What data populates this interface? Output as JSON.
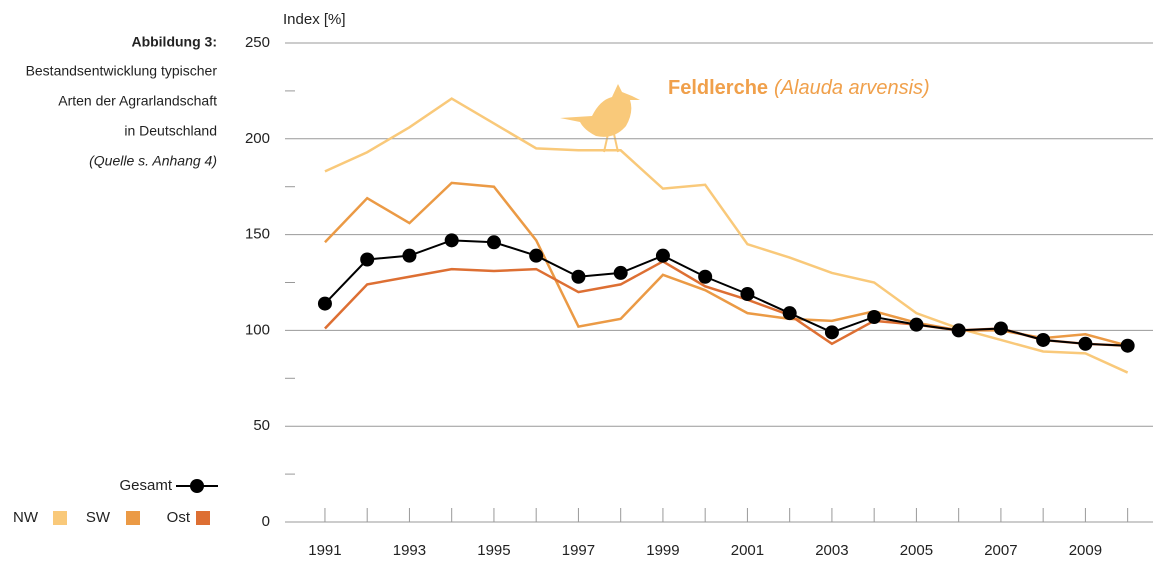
{
  "chart_data": {
    "type": "line",
    "caption_label": "Abbildung 3:",
    "caption_lines": [
      "Bestandsentwicklung typischer",
      "Arten der Agrarlandschaft",
      "in Deutschland"
    ],
    "caption_source": "(Quelle s. Anhang 4)",
    "title": "Feldlerche",
    "title_italic": "(Alauda arvensis)",
    "title_color": "#f0a04b",
    "ylabel": "Index [%]",
    "x": [
      1991,
      1992,
      1993,
      1994,
      1995,
      1996,
      1997,
      1998,
      1999,
      2000,
      2001,
      2002,
      2003,
      2004,
      2005,
      2006,
      2007,
      2008,
      2009,
      2010
    ],
    "xlim": [
      1990,
      2010.6
    ],
    "xticks": [
      1991,
      1993,
      1995,
      1997,
      1999,
      2001,
      2003,
      2005,
      2007,
      2009
    ],
    "ylim": [
      0,
      250
    ],
    "yticks": [
      0,
      50,
      100,
      150,
      200,
      250
    ],
    "yminorticks": [
      25,
      75,
      125,
      175,
      225
    ],
    "grid": true,
    "series": [
      {
        "name": "NW",
        "color": "#f9c97a",
        "values": [
          183,
          193,
          206,
          221,
          208,
          195,
          194,
          194,
          174,
          176,
          145,
          138,
          130,
          125,
          109,
          101,
          95,
          89,
          88,
          78
        ]
      },
      {
        "name": "SW",
        "color": "#eb9a45",
        "values": [
          146,
          169,
          156,
          177,
          175,
          147,
          102,
          106,
          129,
          121,
          109,
          106,
          105,
          110,
          104,
          100,
          100,
          96,
          98,
          92
        ]
      },
      {
        "name": "Ost",
        "color": "#dd6f33",
        "values": [
          101,
          124,
          128,
          132,
          131,
          132,
          120,
          124,
          136,
          123,
          116,
          108,
          93,
          105,
          103,
          100,
          101,
          95,
          93,
          92
        ]
      },
      {
        "name": "Gesamt",
        "color": "#000000",
        "markers": true,
        "values": [
          114,
          137,
          139,
          147,
          146,
          139,
          128,
          130,
          139,
          128,
          119,
          109,
          99,
          107,
          103,
          100,
          101,
          95,
          93,
          92
        ]
      }
    ]
  }
}
